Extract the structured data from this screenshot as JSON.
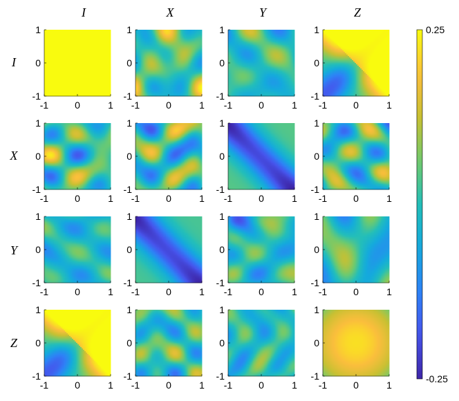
{
  "chart_data": {
    "type": "heatmap",
    "title": "",
    "column_labels": [
      "I",
      "X",
      "Y",
      "Z"
    ],
    "row_labels": [
      "I",
      "X",
      "Y",
      "Z"
    ],
    "x_ticks": [
      "-1",
      "0",
      "1"
    ],
    "y_ticks": [
      "-1",
      "0",
      "1"
    ],
    "xlim": [
      -1,
      1
    ],
    "ylim": [
      -1,
      1
    ],
    "colorbar": {
      "min": -0.25,
      "max": 0.25,
      "min_label": "-0.25",
      "max_label": "0.25",
      "colormap": "parula"
    },
    "panels": [
      [
        {
          "pattern": "constant",
          "level": 0.25
        },
        {
          "pattern": "waves",
          "seed": 11,
          "bias": 0.03
        },
        {
          "pattern": "waves",
          "seed": 12,
          "bias": 0.0
        },
        {
          "pattern": "diag-valley",
          "amp": 0.22,
          "bias": 0.02
        }
      ],
      [
        {
          "pattern": "waves",
          "seed": 21,
          "bias": 0.02
        },
        {
          "pattern": "waves",
          "seed": 22,
          "bias": 0.0
        },
        {
          "pattern": "diag-band",
          "amp": -0.24,
          "bias": 0.04
        },
        {
          "pattern": "waves",
          "seed": 24,
          "bias": 0.01
        }
      ],
      [
        {
          "pattern": "waves",
          "seed": 31,
          "bias": -0.02
        },
        {
          "pattern": "diag-band",
          "amp": -0.23,
          "bias": 0.03
        },
        {
          "pattern": "waves",
          "seed": 33,
          "bias": -0.01
        },
        {
          "pattern": "waves",
          "seed": 34,
          "bias": -0.01
        }
      ],
      [
        {
          "pattern": "diag-valley",
          "amp": 0.22,
          "bias": 0.02
        },
        {
          "pattern": "waves",
          "seed": 42,
          "bias": 0.01
        },
        {
          "pattern": "waves",
          "seed": 43,
          "bias": -0.01
        },
        {
          "pattern": "dome",
          "amp": 0.22
        }
      ]
    ]
  }
}
